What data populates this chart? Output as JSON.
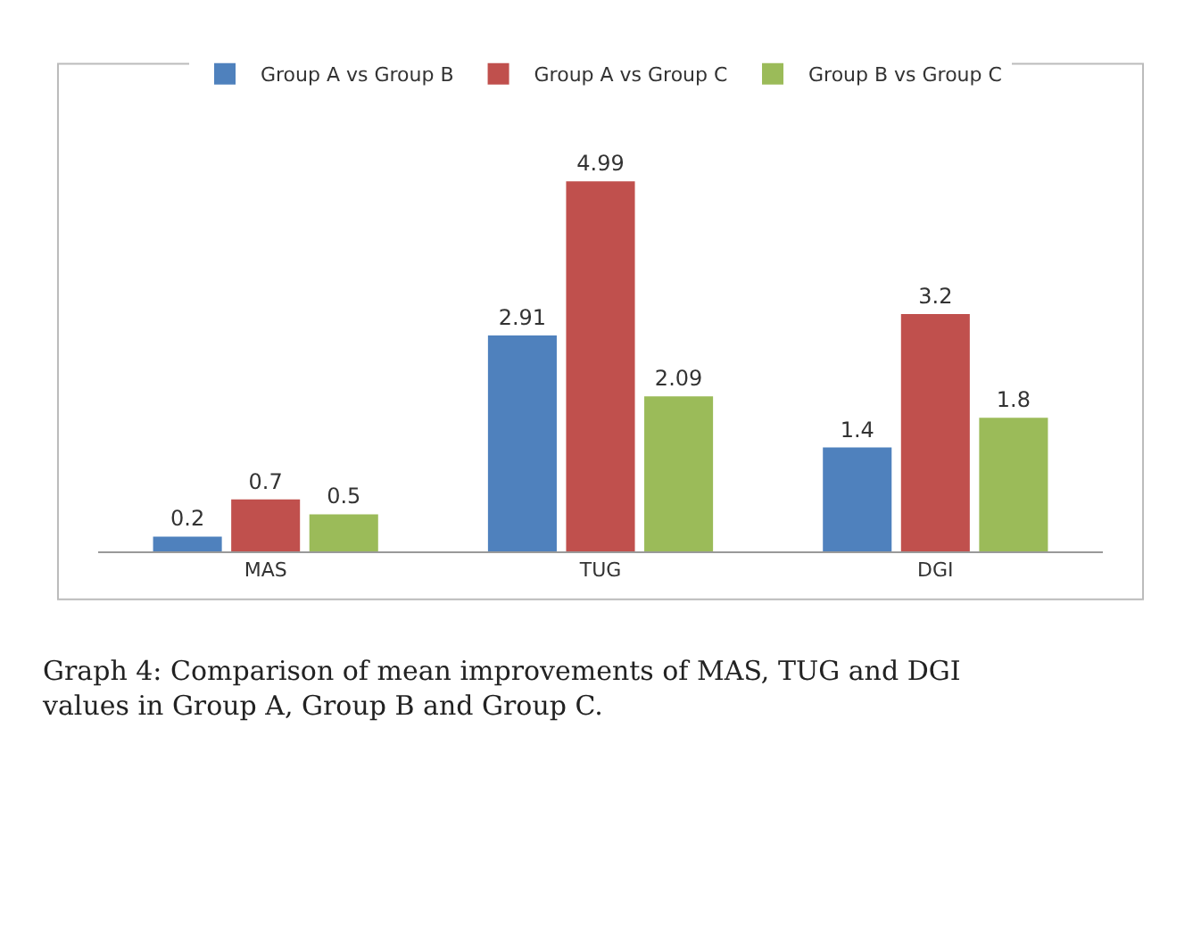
{
  "chart_data": {
    "type": "bar",
    "categories": [
      "MAS",
      "TUG",
      "DGI"
    ],
    "series": [
      {
        "name": "Group A vs Group B",
        "color": "#4f81bd",
        "values": [
          0.2,
          2.91,
          1.4
        ]
      },
      {
        "name": "Group A vs Group C",
        "color": "#c0504d",
        "values": [
          0.7,
          4.99,
          3.2
        ]
      },
      {
        "name": "Group B vs Group C",
        "color": "#9bbb59",
        "values": [
          0.5,
          2.09,
          1.8
        ]
      }
    ],
    "data_labels": true,
    "legend": "top",
    "annotations": [
      "Graph 4: Comparison of mean improvements of MAS, TUG and DGI values in Group A, Group B and Group C."
    ]
  }
}
